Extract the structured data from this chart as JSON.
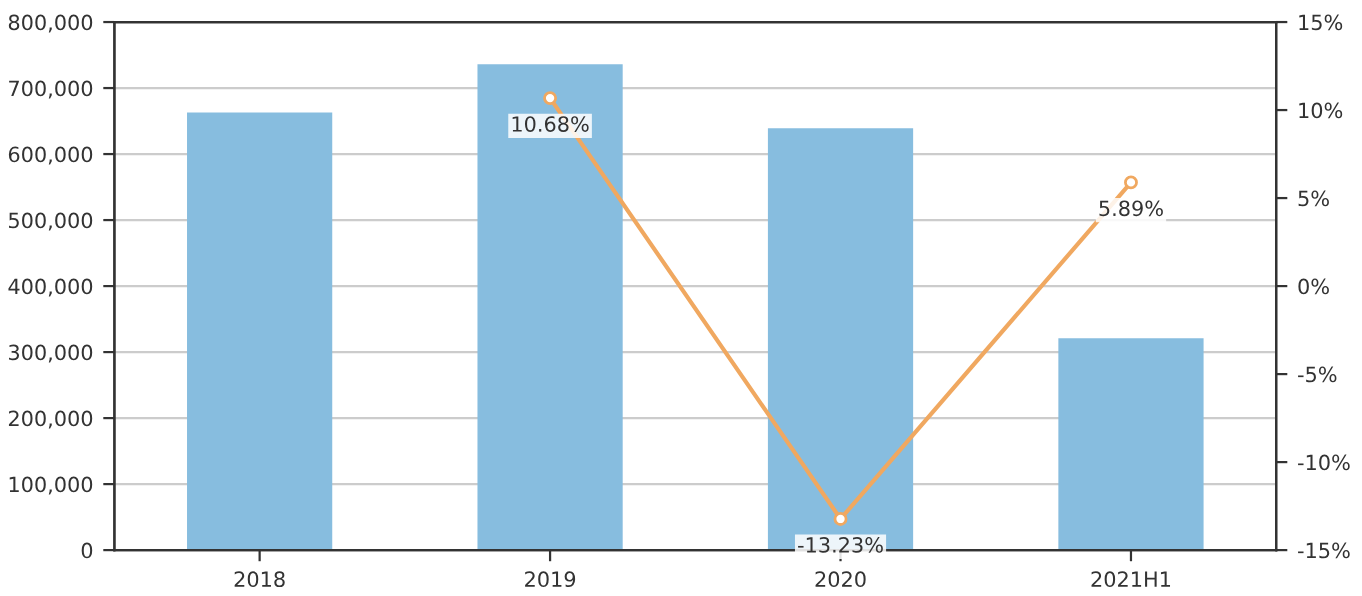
{
  "chart_data": {
    "type": "bar",
    "categories": [
      "2018",
      "2019",
      "2020",
      "2021H1"
    ],
    "series": [
      {
        "color": "#87bddf",
        "values": [
          663000,
          736000,
          639000,
          321000
        ]
      },
      {
        "type": "line",
        "axis": "y2",
        "color": "#f0a860",
        "values": [
          null,
          10.68,
          -13.23,
          5.89
        ],
        "value_labels": [
          null,
          "10.68%",
          "-13.23%",
          "5.89%"
        ]
      }
    ],
    "marker": "circle",
    "grid": "y",
    "legend": false,
    "ylim": [
      0,
      800000
    ],
    "yticks": [
      0,
      {
        "value": 100000,
        "label": "100,000"
      },
      {
        "value": 200000,
        "label": "200,000"
      },
      {
        "value": 300000,
        "label": "300,000"
      },
      {
        "value": 400000,
        "label": "400,000"
      },
      {
        "value": 500000,
        "label": "500,000"
      },
      {
        "value": 600000,
        "label": "600,000"
      },
      {
        "value": 700000,
        "label": "700,000"
      },
      {
        "value": 800000,
        "label": "800,000"
      }
    ],
    "y2lim": [
      -15,
      15
    ],
    "y2ticks": [
      {
        "value": -15,
        "label": "-15%"
      },
      {
        "value": -10,
        "label": "-10%"
      },
      {
        "value": -5,
        "label": "-5%"
      },
      {
        "value": 0,
        "label": "0%"
      },
      {
        "value": 5,
        "label": "5%"
      },
      {
        "value": 10,
        "label": "10%"
      },
      {
        "value": 15,
        "label": "15%"
      }
    ]
  }
}
